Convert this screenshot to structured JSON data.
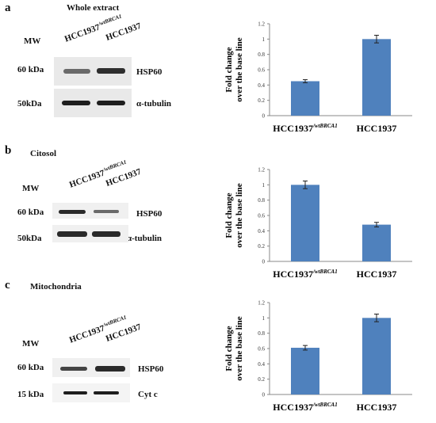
{
  "panels": [
    {
      "label": "a",
      "title": "Whole extract",
      "mw_label": "MW",
      "lanes": {
        "wt": "HCC1937",
        "wt_sup": "/wtBRCA1",
        "ko": "HCC1937"
      },
      "rows": [
        {
          "kda": "60 kDa",
          "protein": "HSP60"
        },
        {
          "kda": "50kDa",
          "protein": "α-tubulin"
        }
      ]
    },
    {
      "label": "b",
      "title": "Citosol",
      "mw_label": "MW",
      "lanes": {
        "wt": "HCC1937",
        "wt_sup": "/wtBRCA1",
        "ko": "HCC1937"
      },
      "rows": [
        {
          "kda": "60 kDa",
          "protein": "HSP60"
        },
        {
          "kda": "50kDa",
          "protein": "α-tubulin"
        }
      ]
    },
    {
      "label": "c",
      "title": "Mitochondria",
      "mw_label": "MW",
      "lanes": {
        "wt": "HCC1937",
        "wt_sup": "/wtBRCA1",
        "ko": "HCC1937"
      },
      "rows": [
        {
          "kda": "60 kDa",
          "protein": "HSP60"
        },
        {
          "kda": "15 kDa",
          "protein": "Cyt c"
        }
      ]
    }
  ],
  "chart_data": [
    {
      "type": "bar",
      "categories": [
        "HCC1937/wtBRCA1",
        "HCC1937"
      ],
      "category_main": [
        "HCC1937",
        "HCC1937"
      ],
      "category_sup": [
        "/wtBRCA1",
        ""
      ],
      "values": [
        0.45,
        1.0
      ],
      "errors": [
        0.02,
        0.05
      ],
      "ylabel_line1": "Fold change",
      "ylabel_line2": "over the base line",
      "ylim": [
        0,
        1.2
      ],
      "yticks": [
        "0",
        "0.2",
        "0.4",
        "0.6",
        "0.8",
        "1",
        "1.2"
      ],
      "grid": false,
      "bar_color": "#4f81bd"
    },
    {
      "type": "bar",
      "categories": [
        "HCC1937/wtBRCA1",
        "HCC1937"
      ],
      "category_main": [
        "HCC1937",
        "HCC1937"
      ],
      "category_sup": [
        "/wtBRCA1",
        ""
      ],
      "values": [
        1.0,
        0.48
      ],
      "errors": [
        0.05,
        0.03
      ],
      "ylabel_line1": "Fold change",
      "ylabel_line2": "over the base line",
      "ylim": [
        0,
        1.2
      ],
      "yticks": [
        "0",
        "0.2",
        "0.4",
        "0.6",
        "0.8",
        "1",
        "1.2"
      ],
      "grid": false,
      "bar_color": "#4f81bd"
    },
    {
      "type": "bar",
      "categories": [
        "HCC1937/wtBRCA1",
        "HCC1937"
      ],
      "category_main": [
        "HCC1937",
        "HCC1937"
      ],
      "category_sup": [
        "/wtBRCA1",
        ""
      ],
      "values": [
        0.61,
        1.0
      ],
      "errors": [
        0.03,
        0.05
      ],
      "ylabel_line1": "Fold change",
      "ylabel_line2": "over the base line",
      "ylim": [
        0,
        1.2
      ],
      "yticks": [
        "0",
        "0.2",
        "0.4",
        "0.6",
        "0.8",
        "1",
        "1.2"
      ],
      "grid": false,
      "bar_color": "#4f81bd"
    }
  ]
}
